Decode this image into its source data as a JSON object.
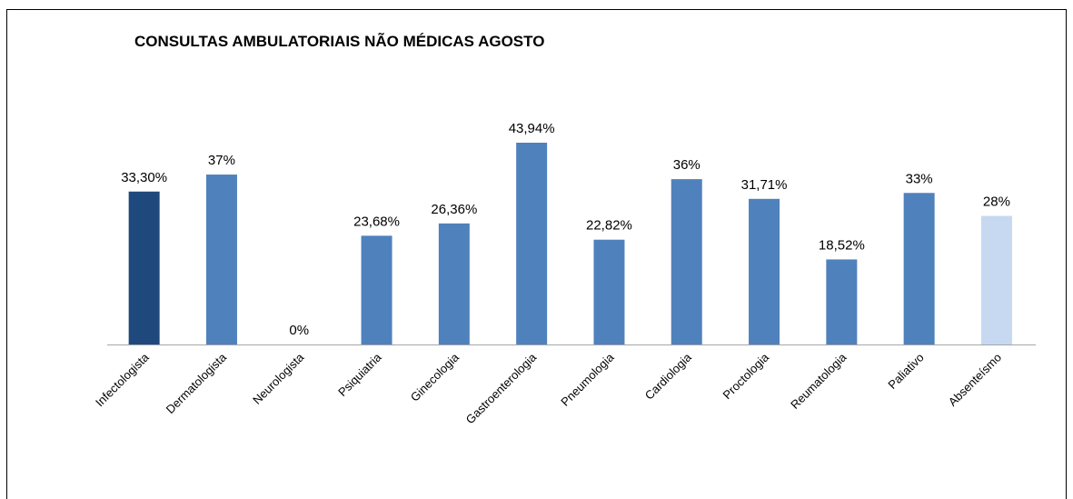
{
  "chart_data": {
    "type": "bar",
    "title": "CONSULTAS AMBULATORIAIS NÃO MÉDICAS AGOSTO",
    "categories": [
      "Infectologista",
      "Dermatologista",
      "Neurologista",
      "Psiquiatria",
      "Ginecologia",
      "Gastroenterologia",
      "Pneumologia",
      "Cardiologia",
      "Proctologia",
      "Reumatologia",
      "Paliativo",
      "Absenteísmo"
    ],
    "values": [
      33.3,
      37,
      0,
      23.68,
      26.36,
      43.94,
      22.82,
      36,
      31.71,
      18.52,
      33,
      28
    ],
    "value_labels": [
      "33,30%",
      "37%",
      "0%",
      "23,68%",
      "26,36%",
      "43,94%",
      "22,82%",
      "36%",
      "31,71%",
      "18,52%",
      "33%",
      "28%"
    ],
    "colors": [
      "#1f497d",
      "#4f81bd",
      "#4f81bd",
      "#4f81bd",
      "#4f81bd",
      "#4f81bd",
      "#4f81bd",
      "#4f81bd",
      "#4f81bd",
      "#4f81bd",
      "#4f81bd",
      "#c6d9f1"
    ]
  }
}
